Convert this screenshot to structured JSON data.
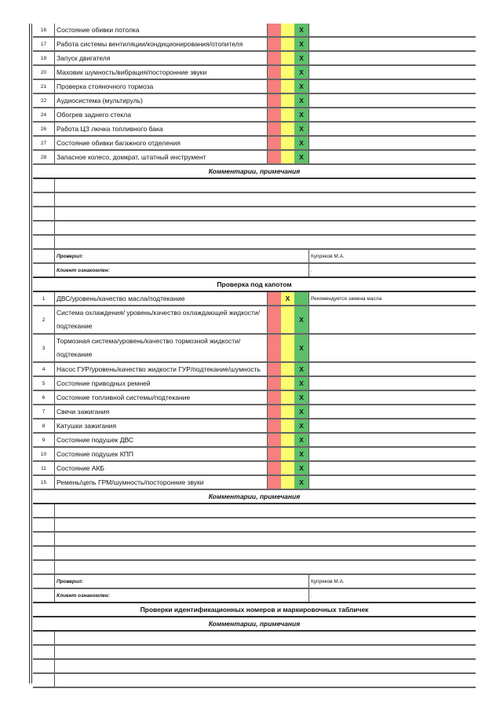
{
  "section1_rows": [
    {
      "num": "16",
      "desc": "Состояние обивки потолка",
      "mark": "green",
      "mark_label": "X",
      "comment": ""
    },
    {
      "num": "17",
      "desc": "Работа системы вентиляции/кондиционирования/отопителя",
      "mark": "green",
      "mark_label": "X",
      "comment": ""
    },
    {
      "num": "18",
      "desc": "Запуск двигателя",
      "mark": "green",
      "mark_label": "X",
      "comment": ""
    },
    {
      "num": "20",
      "desc": "Маховик шумность/вибрация/посторонние звуки",
      "mark": "green",
      "mark_label": "X",
      "comment": ""
    },
    {
      "num": "21",
      "desc": "Проверка стояночного тормоза",
      "mark": "green",
      "mark_label": "X",
      "comment": ""
    },
    {
      "num": "22",
      "desc": "Аудиосистема (мультируль)",
      "mark": "green",
      "mark_label": "X",
      "comment": ""
    },
    {
      "num": "24",
      "desc": "Обогрев заднего стекла",
      "mark": "green",
      "mark_label": "X",
      "comment": ""
    },
    {
      "num": "26",
      "desc": "Работа ЦЗ лючка топливного бака",
      "mark": "green",
      "mark_label": "X",
      "comment": ""
    },
    {
      "num": "27",
      "desc": "Состояние обивки багажного отделения",
      "mark": "green",
      "mark_label": "X",
      "comment": ""
    },
    {
      "num": "28",
      "desc": "Запасное колесо, домкрат, штатный инструмент",
      "mark": "green",
      "mark_label": "X",
      "comment": ""
    }
  ],
  "comments_header": "Комментарии, примечания",
  "checked_label": "Проверил:",
  "checked_by": "Купряков М.А.",
  "client_label": "Клиент ознакомлен:",
  "client_value": ".",
  "section2_title": "Проверка под капотом",
  "section2_rows": [
    {
      "num": "1",
      "desc": "ДВС/уровень/качество масла/подтекание",
      "mark": "yellow",
      "mark_label": "X",
      "comment": "Рекомендуется замена масла"
    },
    {
      "num": "2",
      "desc": "Система охлаждения/ уровень/качество охлаждающей жидкости/ подтекание",
      "mark": "green",
      "mark_label": "X",
      "comment": "",
      "tall": true
    },
    {
      "num": "3",
      "desc": "Тормозная система/уровень/качество тормозной жидкости/ подтекание",
      "mark": "green",
      "mark_label": "X",
      "comment": "",
      "tall": true
    },
    {
      "num": "4",
      "desc": "Насос ГУР/уровень/качество жидкости ГУР/подтекание/шумность",
      "mark": "green",
      "mark_label": "X",
      "comment": ""
    },
    {
      "num": "5",
      "desc": "Состояние приводных ремней",
      "mark": "green",
      "mark_label": "X",
      "comment": ""
    },
    {
      "num": "6",
      "desc": "Состояние топливной системы/подтекание",
      "mark": "green",
      "mark_label": "X",
      "comment": ""
    },
    {
      "num": "7",
      "desc": "Свечи зажигания",
      "mark": "green",
      "mark_label": "X",
      "comment": ""
    },
    {
      "num": "8",
      "desc": "Катушки зажигания",
      "mark": "green",
      "mark_label": "X",
      "comment": ""
    },
    {
      "num": "9",
      "desc": "Состояние подушек ДВС",
      "mark": "green",
      "mark_label": "X",
      "comment": ""
    },
    {
      "num": "10",
      "desc": "Состояние подушек КПП",
      "mark": "green",
      "mark_label": "X",
      "comment": ""
    },
    {
      "num": "11",
      "desc": "Состояние АКБ",
      "mark": "green",
      "mark_label": "X",
      "comment": ""
    },
    {
      "num": "15",
      "desc": "Ремень/цепь ГРМ/шумность/посторонние звуки",
      "mark": "green",
      "mark_label": "X",
      "comment": ""
    }
  ],
  "section3_title": "Проверки идентификационных номеров и маркировочных табличек",
  "colors": {
    "red": "#f58080",
    "yellow": "#fdfd70",
    "green": "#5fbf6a"
  }
}
